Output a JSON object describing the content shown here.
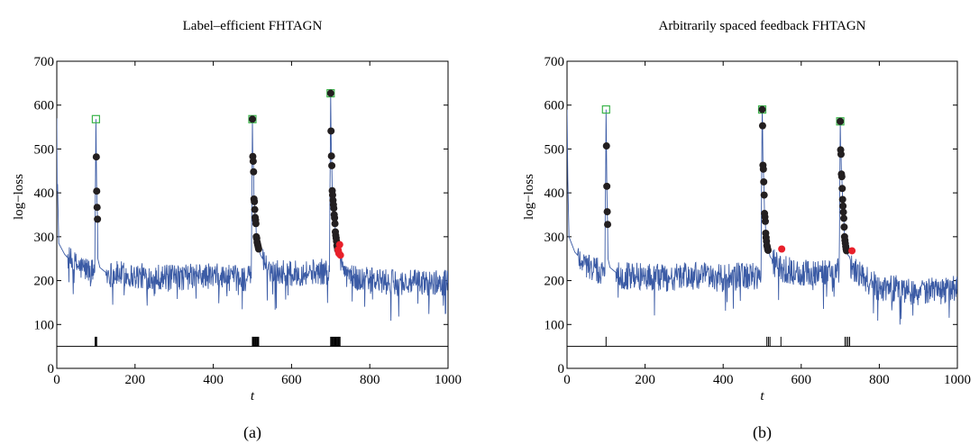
{
  "chart_data": [
    {
      "type": "line",
      "panel_label": "(a)",
      "title": "Label–efficient FHTAGN",
      "xlabel": "t",
      "ylabel": "log−loss",
      "xlim": [
        0,
        1000
      ],
      "ylim": [
        0,
        700
      ],
      "xticks": [
        0,
        200,
        400,
        600,
        800,
        1000
      ],
      "yticks": [
        0,
        100,
        200,
        300,
        400,
        500,
        600,
        700
      ],
      "grid": false,
      "baseline_y": 50,
      "series": [
        {
          "role": "line",
          "color": "#3b5ba5",
          "segments": [
            {
              "x": [
                0,
                2,
                5,
                20,
                40,
                60,
                80,
                97
              ],
              "y": [
                570,
                420,
                285,
                260,
                240,
                230,
                225,
                220
              ]
            },
            {
              "x": [
                97,
                100,
                101,
                102,
                103,
                104,
                105,
                110,
                130,
                160,
                200,
                250,
                300,
                350,
                400,
                450,
                497
              ],
              "y": [
                220,
                568,
                482,
                404,
                367,
                340,
                250,
                230,
                215,
                215,
                210,
                210,
                205,
                210,
                210,
                205,
                205
              ]
            },
            {
              "x": [
                497,
                500,
                501,
                502,
                503,
                504,
                505,
                506,
                507,
                508,
                509,
                510,
                511,
                512,
                513,
                514,
                515,
                516,
                517,
                518,
                520,
                540,
                600,
                650,
                697
              ],
              "y": [
                205,
                568,
                483,
                472,
                448,
                386,
                380,
                362,
                344,
                338,
                330,
                300,
                296,
                288,
                284,
                280,
                276,
                272,
                272,
                270,
                260,
                225,
                215,
                220,
                220
              ]
            },
            {
              "x": [
                697,
                700,
                701,
                702,
                703,
                704,
                705,
                706,
                707,
                708,
                709,
                710,
                711,
                712,
                713,
                714,
                715,
                716,
                717,
                718,
                719,
                720,
                721,
                722,
                723,
                724,
                725,
                730,
                760,
                800,
                850,
                900,
                950,
                1000
              ],
              "y": [
                220,
                627,
                541,
                484,
                462,
                405,
                395,
                383,
                373,
                365,
                350,
                343,
                330,
                311,
                303,
                297,
                290,
                280,
                276,
                270,
                266,
                262,
                282,
                270,
                258,
                252,
                245,
                230,
                205,
                200,
                195,
                195,
                195,
                195
              ]
            }
          ],
          "noise_amplitude": 30
        },
        {
          "role": "squares",
          "color": "#3cb44b",
          "x": [
            100,
            500,
            700
          ],
          "y": [
            568,
            568,
            627
          ]
        },
        {
          "role": "black-points",
          "color": "#231f20",
          "x": [
            101,
            102,
            103,
            104,
            500,
            501,
            502,
            503,
            504,
            505,
            506,
            507,
            508,
            509,
            510,
            511,
            512,
            513,
            514,
            515,
            516,
            700,
            701,
            702,
            703,
            704,
            705,
            706,
            707,
            708,
            709,
            710,
            711,
            712,
            713,
            714,
            715,
            716,
            717,
            718
          ],
          "y": [
            482,
            404,
            367,
            340,
            568,
            483,
            472,
            448,
            386,
            380,
            362,
            344,
            338,
            330,
            300,
            296,
            288,
            284,
            280,
            276,
            272,
            627,
            541,
            484,
            462,
            405,
            395,
            383,
            373,
            365,
            350,
            343,
            330,
            311,
            303,
            297,
            290,
            280,
            276,
            270
          ]
        },
        {
          "role": "red-points",
          "color": "#e8202a",
          "x": [
            719,
            720,
            721,
            723,
            725
          ],
          "y": [
            270,
            266,
            262,
            282,
            258
          ]
        },
        {
          "role": "query-ticks",
          "color": "#000000",
          "x": [
            98,
            100,
            102,
            500,
            502,
            504,
            506,
            508,
            510,
            512,
            514,
            516,
            700,
            702,
            704,
            706,
            708,
            710,
            712,
            714,
            716,
            718,
            720,
            722,
            724
          ]
        }
      ]
    },
    {
      "type": "line",
      "panel_label": "(b)",
      "title": "Arbitrarily spaced feedback FHTAGN",
      "xlabel": "t",
      "ylabel": "log−loss",
      "xlim": [
        0,
        1000
      ],
      "ylim": [
        0,
        700
      ],
      "xticks": [
        0,
        200,
        400,
        600,
        800,
        1000
      ],
      "yticks": [
        0,
        100,
        200,
        300,
        400,
        500,
        600,
        700
      ],
      "grid": false,
      "baseline_y": 50,
      "series": [
        {
          "role": "line",
          "color": "#3b5ba5",
          "segments": [
            {
              "x": [
                0,
                2,
                5,
                20,
                40,
                60,
                80,
                97
              ],
              "y": [
                590,
                430,
                300,
                265,
                245,
                230,
                220,
                215
              ]
            },
            {
              "x": [
                97,
                100,
                101,
                102,
                103,
                104,
                105,
                110,
                130,
                160,
                200,
                250,
                300,
                350,
                400,
                450,
                497
              ],
              "y": [
                215,
                590,
                507,
                415,
                357,
                328,
                250,
                230,
                215,
                210,
                210,
                205,
                210,
                210,
                205,
                210,
                210
              ]
            },
            {
              "x": [
                497,
                500,
                501,
                502,
                503,
                504,
                505,
                506,
                507,
                508,
                509,
                510,
                511,
                512,
                513,
                514,
                515,
                516,
                517,
                518,
                520,
                540,
                600,
                650,
                697
              ],
              "y": [
                210,
                590,
                553,
                463,
                454,
                425,
                395,
                353,
                345,
                335,
                308,
                298,
                290,
                280,
                277,
                272,
                269,
                266,
                265,
                265,
                255,
                230,
                215,
                220,
                220
              ]
            },
            {
              "x": [
                697,
                700,
                701,
                702,
                703,
                704,
                705,
                706,
                707,
                708,
                709,
                710,
                711,
                712,
                713,
                714,
                715,
                716,
                717,
                718,
                719,
                720,
                721,
                722,
                723,
                724,
                725,
                730,
                760,
                800,
                850,
                900,
                950,
                1000
              ],
              "y": [
                220,
                563,
                498,
                488,
                443,
                437,
                410,
                385,
                370,
                356,
                342,
                322,
                300,
                292,
                285,
                278,
                272,
                268,
                266,
                262,
                260,
                258,
                257,
                256,
                255,
                254,
                250,
                225,
                205,
                185,
                180,
                175,
                175,
                180
              ]
            }
          ],
          "noise_amplitude": 32
        },
        {
          "role": "squares",
          "color": "#3cb44b",
          "x": [
            100,
            500,
            700
          ],
          "y": [
            590,
            590,
            563
          ]
        },
        {
          "role": "black-points",
          "color": "#231f20",
          "x": [
            101,
            102,
            103,
            104,
            500,
            501,
            502,
            503,
            504,
            505,
            506,
            507,
            508,
            509,
            510,
            511,
            512,
            513,
            514,
            515,
            700,
            701,
            702,
            703,
            704,
            705,
            706,
            707,
            708,
            709,
            710,
            711,
            712,
            713,
            714,
            715,
            716
          ],
          "y": [
            507,
            415,
            357,
            328,
            590,
            553,
            463,
            454,
            425,
            395,
            353,
            345,
            335,
            308,
            298,
            290,
            280,
            277,
            272,
            269,
            563,
            498,
            488,
            443,
            437,
            410,
            385,
            370,
            356,
            342,
            322,
            300,
            292,
            285,
            278,
            272,
            268
          ]
        },
        {
          "role": "red-points",
          "color": "#e8202a",
          "x": [
            550,
            730
          ],
          "y": [
            272,
            268
          ]
        },
        {
          "role": "query-ticks",
          "color": "#000000",
          "x": [
            100,
            512,
            516,
            520,
            548,
            712,
            716,
            720,
            724
          ]
        }
      ]
    }
  ]
}
